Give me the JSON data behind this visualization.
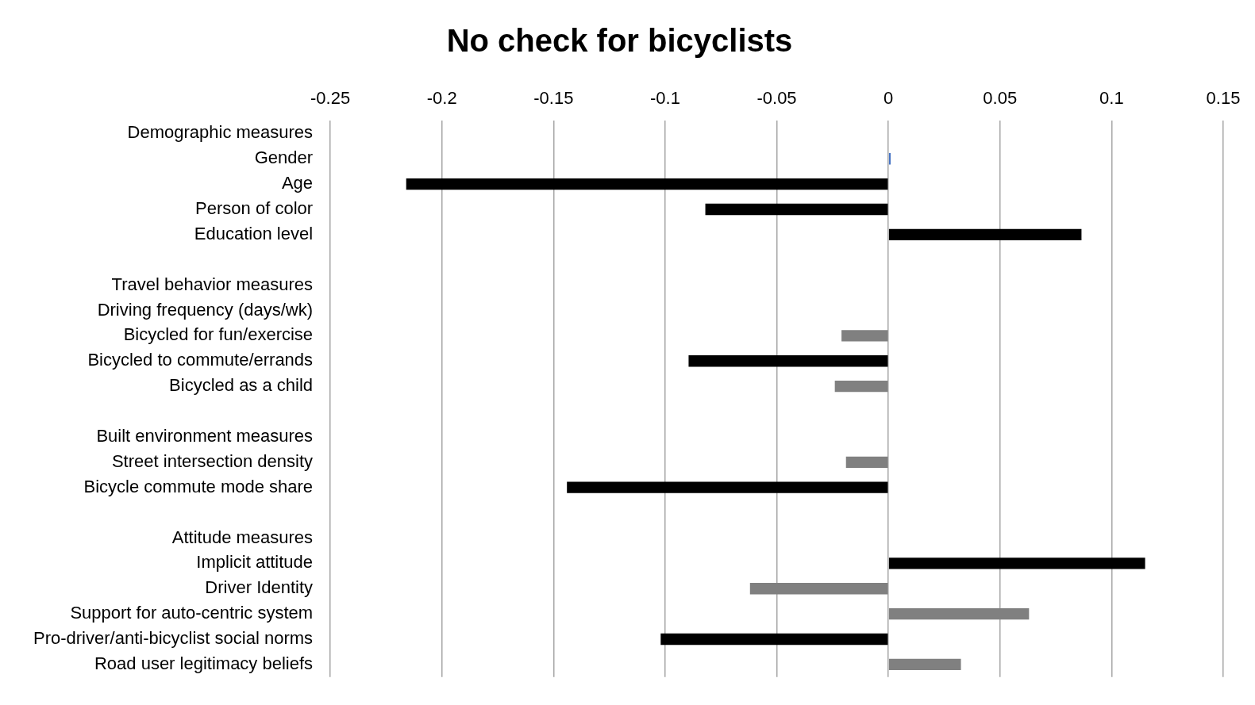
{
  "chart_data": {
    "type": "bar",
    "orientation": "horizontal",
    "title": "No check for bicyclists",
    "categories": [
      "Demographic measures",
      "Gender",
      "Age",
      "Person of color",
      "Education level",
      null,
      "Travel behavior measures",
      "Driving frequency (days/wk)",
      "Bicycled for fun/exercise",
      "Bicycled to commute/errands",
      "Bicycled as a child",
      null,
      "Built environment measures",
      "Street intersection density",
      "Bicycle commute mode share",
      null,
      "Attitude measures",
      "Implicit attitude",
      "Driver Identity",
      "Support for auto-centric system",
      "Pro-driver/anti-bicyclist social norms",
      "Road user legitimacy beliefs"
    ],
    "values": [
      null,
      0.001,
      -0.216,
      -0.082,
      0.0865,
      null,
      null,
      null,
      -0.021,
      -0.0895,
      -0.024,
      null,
      null,
      -0.019,
      -0.144,
      null,
      null,
      0.115,
      -0.062,
      0.063,
      -0.102,
      0.0325
    ],
    "colors": [
      "#000000",
      "#4472c4",
      "#000000",
      "#000000",
      "#000000",
      "#000000",
      "#000000",
      "#000000",
      "#808080",
      "#000000",
      "#808080",
      "#000000",
      "#000000",
      "#808080",
      "#000000",
      "#000000",
      "#000000",
      "#000000",
      "#808080",
      "#808080",
      "#000000",
      "#808080"
    ],
    "xlim": [
      -0.25,
      0.15
    ],
    "xticks": [
      -0.25,
      -0.2,
      -0.15,
      -0.1,
      -0.05,
      0,
      0.05,
      0.1,
      0.15
    ],
    "grid": "x"
  }
}
